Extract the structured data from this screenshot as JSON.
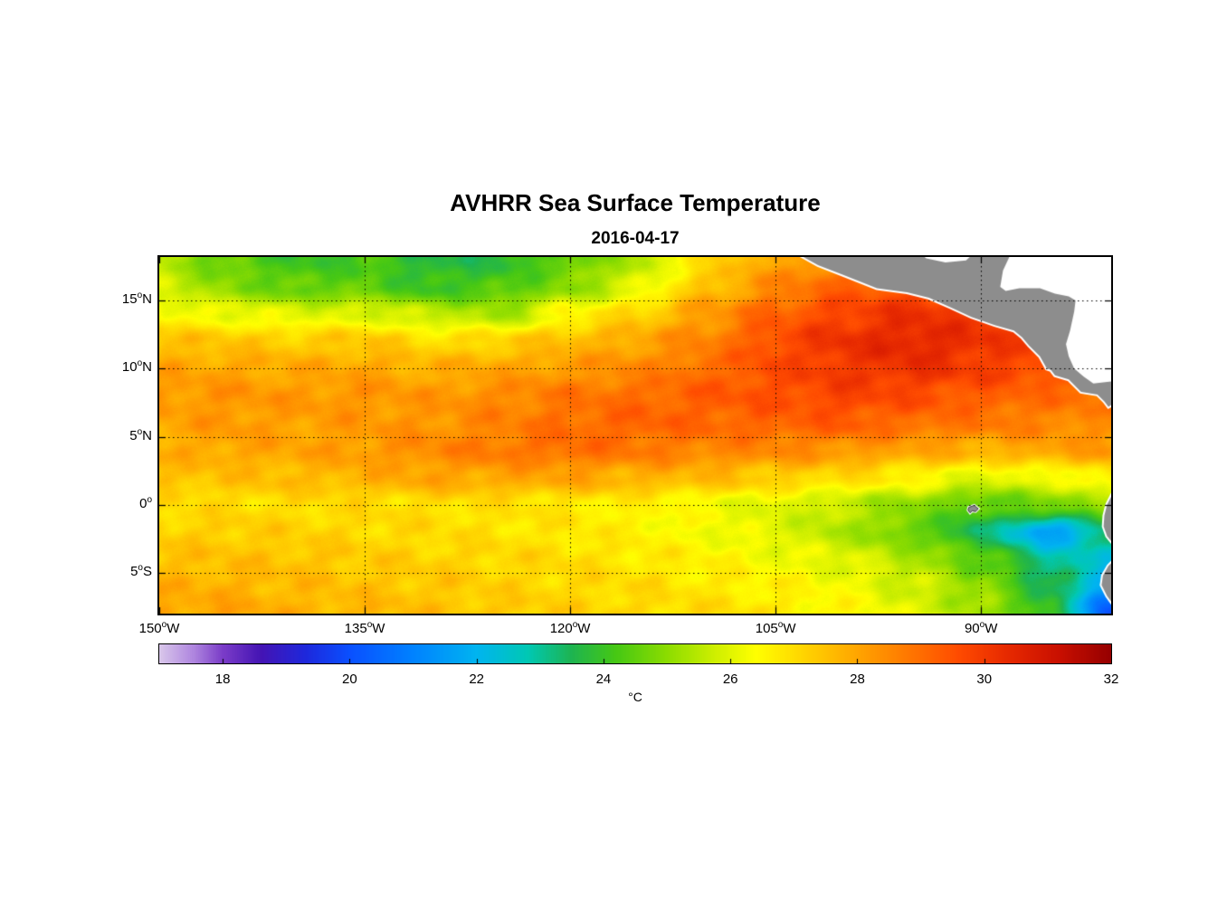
{
  "chart_data": {
    "type": "heatmap",
    "title": "AVHRR Sea Surface Temperature",
    "subtitle": "2016-04-17",
    "colorbar_unit": "°C",
    "degree_symbol": "o",
    "lon_min": -150,
    "lon_max": -80.5,
    "lat_min": -8,
    "lat_max": 18.2,
    "xticks": [
      {
        "num": "150",
        "suffix": "W",
        "lon": -150
      },
      {
        "num": "135",
        "suffix": "W",
        "lon": -135
      },
      {
        "num": "120",
        "suffix": "W",
        "lon": -120
      },
      {
        "num": "105",
        "suffix": "W",
        "lon": -105
      },
      {
        "num": "90",
        "suffix": "W",
        "lon": -90
      }
    ],
    "yticks": [
      {
        "num": "15",
        "suffix": "N",
        "lat": 15
      },
      {
        "num": "10",
        "suffix": "N",
        "lat": 10
      },
      {
        "num": "5",
        "suffix": "N",
        "lat": 5
      },
      {
        "num": "0",
        "suffix": "",
        "lat": 0
      },
      {
        "num": "5",
        "suffix": "S",
        "lat": -5
      }
    ],
    "grid_lons": [
      -135,
      -120,
      -105,
      -90
    ],
    "grid_lats": [
      15,
      10,
      5,
      0,
      -5
    ],
    "colorbar": {
      "min": 17,
      "max": 32,
      "ticks": [
        18,
        20,
        22,
        24,
        26,
        28,
        30,
        32
      ]
    },
    "colormap_stops": [
      [
        17.0,
        "#d8c6ea"
      ],
      [
        17.5,
        "#b28ae0"
      ],
      [
        18.0,
        "#7a3cc8"
      ],
      [
        18.6,
        "#4414b4"
      ],
      [
        19.3,
        "#1e28dc"
      ],
      [
        20.0,
        "#0a50ff"
      ],
      [
        21.0,
        "#0082ff"
      ],
      [
        22.0,
        "#00b4f0"
      ],
      [
        22.8,
        "#00c8b4"
      ],
      [
        23.5,
        "#1eb450"
      ],
      [
        24.2,
        "#46c814"
      ],
      [
        25.0,
        "#8cdc00"
      ],
      [
        25.8,
        "#d2f000"
      ],
      [
        26.4,
        "#ffff00"
      ],
      [
        27.2,
        "#ffd200"
      ],
      [
        28.0,
        "#ffa500"
      ],
      [
        28.8,
        "#ff7800"
      ],
      [
        29.6,
        "#ff4b00"
      ],
      [
        30.4,
        "#e62800"
      ],
      [
        31.2,
        "#c80f00"
      ],
      [
        32.0,
        "#960000"
      ]
    ],
    "land_color": "#8d8d8d",
    "sea_mask_color": "#ffffff",
    "sst_grid": {
      "lons": [
        -150,
        -145,
        -140,
        -135,
        -130,
        -125,
        -120,
        -115,
        -110,
        -105,
        -100,
        -95,
        -90,
        -85,
        -80
      ],
      "lats": [
        18,
        16,
        14,
        12,
        10,
        8,
        6,
        4,
        2,
        0,
        -2,
        -4,
        -6,
        -8
      ],
      "values": [
        [
          25.5,
          24.5,
          24.0,
          24.2,
          23.6,
          23.8,
          24.5,
          25.5,
          27.0,
          28.0,
          28.5,
          29.0,
          29.0,
          29.0,
          29.0
        ],
        [
          25.8,
          25.0,
          24.5,
          24.5,
          24.0,
          24.3,
          25.0,
          26.0,
          27.5,
          28.5,
          29.2,
          29.5,
          29.5,
          29.2,
          29.0
        ],
        [
          26.5,
          26.2,
          26.0,
          26.0,
          25.6,
          25.3,
          26.5,
          27.2,
          28.2,
          29.2,
          29.8,
          30.2,
          30.0,
          29.5,
          29.2
        ],
        [
          27.5,
          27.4,
          27.3,
          27.4,
          27.0,
          27.2,
          27.6,
          28.0,
          28.6,
          29.6,
          30.2,
          30.5,
          30.2,
          29.6,
          29.2
        ],
        [
          28.0,
          28.0,
          27.9,
          28.0,
          27.8,
          28.0,
          28.2,
          28.5,
          29.0,
          29.6,
          30.0,
          30.2,
          29.9,
          29.6,
          29.2
        ],
        [
          28.2,
          28.3,
          28.2,
          28.3,
          28.2,
          28.5,
          28.8,
          29.0,
          29.3,
          29.5,
          29.8,
          29.6,
          29.3,
          29.0,
          28.8
        ],
        [
          28.0,
          28.2,
          28.1,
          28.2,
          28.3,
          28.6,
          29.0,
          29.2,
          29.1,
          29.2,
          29.3,
          29.0,
          28.8,
          28.6,
          28.4
        ],
        [
          27.8,
          28.0,
          28.0,
          28.2,
          28.5,
          28.8,
          29.0,
          28.8,
          28.6,
          28.5,
          28.3,
          28.0,
          27.8,
          28.0,
          28.2
        ],
        [
          27.5,
          27.5,
          27.6,
          27.8,
          28.0,
          28.0,
          28.0,
          27.8,
          27.6,
          27.3,
          27.0,
          26.6,
          26.0,
          26.2,
          26.8
        ],
        [
          27.0,
          27.0,
          27.0,
          27.0,
          27.0,
          26.9,
          26.8,
          26.6,
          26.3,
          26.0,
          25.6,
          25.0,
          24.4,
          24.8,
          25.2
        ],
        [
          27.2,
          27.3,
          27.2,
          27.1,
          27.0,
          26.9,
          26.8,
          26.6,
          26.3,
          26.0,
          25.4,
          24.6,
          23.4,
          21.5,
          23.3
        ],
        [
          27.5,
          27.5,
          27.5,
          27.3,
          27.2,
          27.1,
          27.0,
          26.8,
          26.6,
          26.3,
          26.0,
          25.4,
          24.5,
          23.0,
          22.4
        ],
        [
          27.8,
          27.8,
          27.6,
          27.5,
          27.4,
          27.2,
          27.1,
          27.0,
          26.8,
          26.6,
          26.3,
          25.8,
          25.0,
          23.6,
          21.4
        ],
        [
          28.0,
          28.0,
          27.8,
          27.7,
          27.5,
          27.4,
          27.2,
          27.1,
          27.0,
          26.8,
          26.5,
          26.0,
          25.3,
          23.8,
          19.8
        ]
      ]
    },
    "land_polygons": {
      "central_america": [
        [
          -103.5,
          18.5
        ],
        [
          -101.9,
          17.6
        ],
        [
          -100.1,
          16.9
        ],
        [
          -97.6,
          15.9
        ],
        [
          -95.4,
          15.6
        ],
        [
          -93.8,
          15.2
        ],
        [
          -92.2,
          14.5
        ],
        [
          -90.7,
          13.8
        ],
        [
          -89.0,
          13.2
        ],
        [
          -87.6,
          12.8
        ],
        [
          -87.0,
          12.3
        ],
        [
          -86.5,
          11.7
        ],
        [
          -85.7,
          10.9
        ],
        [
          -85.2,
          10.0
        ],
        [
          -84.9,
          9.9
        ],
        [
          -84.6,
          9.5
        ],
        [
          -83.6,
          9.2
        ],
        [
          -82.7,
          8.3
        ],
        [
          -81.5,
          8.1
        ],
        [
          -81.0,
          7.6
        ],
        [
          -80.7,
          7.2
        ],
        [
          -80.2,
          7.5
        ],
        [
          -80.2,
          9.1
        ],
        [
          -81.8,
          8.9
        ],
        [
          -82.5,
          9.4
        ],
        [
          -83.2,
          10.0
        ],
        [
          -83.6,
          10.9
        ],
        [
          -83.8,
          11.8
        ],
        [
          -83.5,
          12.8
        ],
        [
          -83.2,
          14.2
        ],
        [
          -83.1,
          15.0
        ],
        [
          -83.6,
          15.3
        ],
        [
          -84.6,
          15.5
        ],
        [
          -85.7,
          15.9
        ],
        [
          -87.2,
          15.9
        ],
        [
          -88.2,
          15.7
        ],
        [
          -88.6,
          16.0
        ],
        [
          -88.4,
          17.2
        ],
        [
          -87.8,
          18.5
        ],
        [
          -90.5,
          18.5
        ],
        [
          -91.1,
          17.95
        ],
        [
          -92.6,
          17.8
        ],
        [
          -94.0,
          18.1
        ],
        [
          -94.5,
          18.5
        ]
      ],
      "south_america": [
        [
          [
            -80.2,
            0.9
          ],
          [
            -80.4,
            0.8
          ],
          [
            -80.8,
            0.0
          ],
          [
            -81.0,
            -0.8
          ],
          [
            -81.05,
            -1.6
          ],
          [
            -80.8,
            -2.3
          ],
          [
            -80.4,
            -2.8
          ],
          [
            -80.2,
            -3.0
          ]
        ],
        [
          [
            -80.2,
            -4.0
          ],
          [
            -80.7,
            -4.5
          ],
          [
            -81.1,
            -5.2
          ],
          [
            -81.2,
            -5.9
          ],
          [
            -80.8,
            -6.7
          ],
          [
            -80.3,
            -7.4
          ],
          [
            -80.2,
            -7.8
          ]
        ]
      ],
      "galapagos": [
        [
          -90.9,
          -0.2
        ],
        [
          -90.5,
          -0.05
        ],
        [
          -90.2,
          -0.3
        ],
        [
          -90.4,
          -0.5
        ],
        [
          -90.65,
          -0.45
        ],
        [
          -90.8,
          -0.6
        ],
        [
          -90.95,
          -0.4
        ]
      ],
      "masked_seas": {
        "bay_of_campeche": [
          [
            -94.5,
            18.6
          ],
          [
            -94.0,
            18.1
          ],
          [
            -92.6,
            17.8
          ],
          [
            -91.1,
            17.95
          ],
          [
            -90.5,
            18.6
          ]
        ],
        "caribbean": [
          [
            -87.8,
            18.6
          ],
          [
            -88.4,
            17.2
          ],
          [
            -88.6,
            16.0
          ],
          [
            -88.2,
            15.7
          ],
          [
            -87.2,
            15.9
          ],
          [
            -85.7,
            15.9
          ],
          [
            -84.6,
            15.5
          ],
          [
            -83.6,
            15.3
          ],
          [
            -83.1,
            15.0
          ],
          [
            -83.2,
            14.2
          ],
          [
            -83.5,
            12.8
          ],
          [
            -83.8,
            11.8
          ],
          [
            -83.6,
            10.9
          ],
          [
            -83.2,
            10.0
          ],
          [
            -82.5,
            9.4
          ],
          [
            -81.8,
            8.9
          ],
          [
            -80.2,
            9.1
          ],
          [
            -80.2,
            18.6
          ]
        ]
      }
    }
  }
}
